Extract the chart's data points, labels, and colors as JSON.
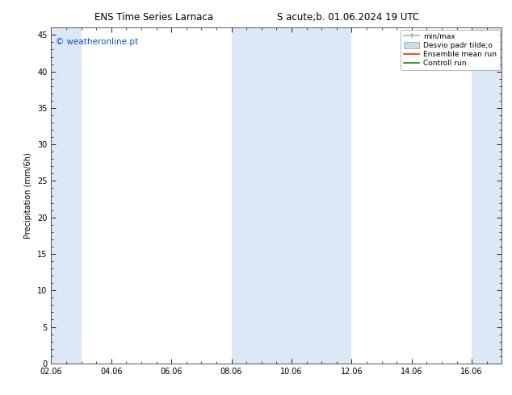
{
  "title_left": "ENS Time Series Larnaca",
  "title_right": "S acute;b. 01.06.2024 19 UTC",
  "ylabel": "Precipitation (mm/6h)",
  "ylim": [
    0,
    46
  ],
  "yticks": [
    0,
    5,
    10,
    15,
    20,
    25,
    30,
    35,
    40,
    45
  ],
  "bg_color": "#ffffff",
  "plot_bg_color": "#ffffff",
  "shaded_band_color": "#dce8f5",
  "watermark": "© weatheronline.pt",
  "watermark_color": "#1155bb",
  "legend_labels": [
    "min/max",
    "Desvio padr tilde;o",
    "Ensemble mean run",
    "Controll run"
  ],
  "legend_colors_line": [
    "#aabbcc",
    "#ccddee",
    "#ff2200",
    "#228800"
  ],
  "x_tick_labels": [
    "02.06",
    "04.06",
    "06.06",
    "08.06",
    "10.06",
    "12.06",
    "14.06",
    "16.06"
  ],
  "x_tick_positions": [
    0,
    2,
    4,
    6,
    8,
    10,
    12,
    14
  ],
  "x_min": 0,
  "x_max": 15,
  "shaded_bands": [
    {
      "x_start": 0.0,
      "x_end": 1.0
    },
    {
      "x_start": 6.0,
      "x_end": 8.0
    },
    {
      "x_start": 8.0,
      "x_end": 10.0
    },
    {
      "x_start": 14.0,
      "x_end": 15.0
    }
  ]
}
